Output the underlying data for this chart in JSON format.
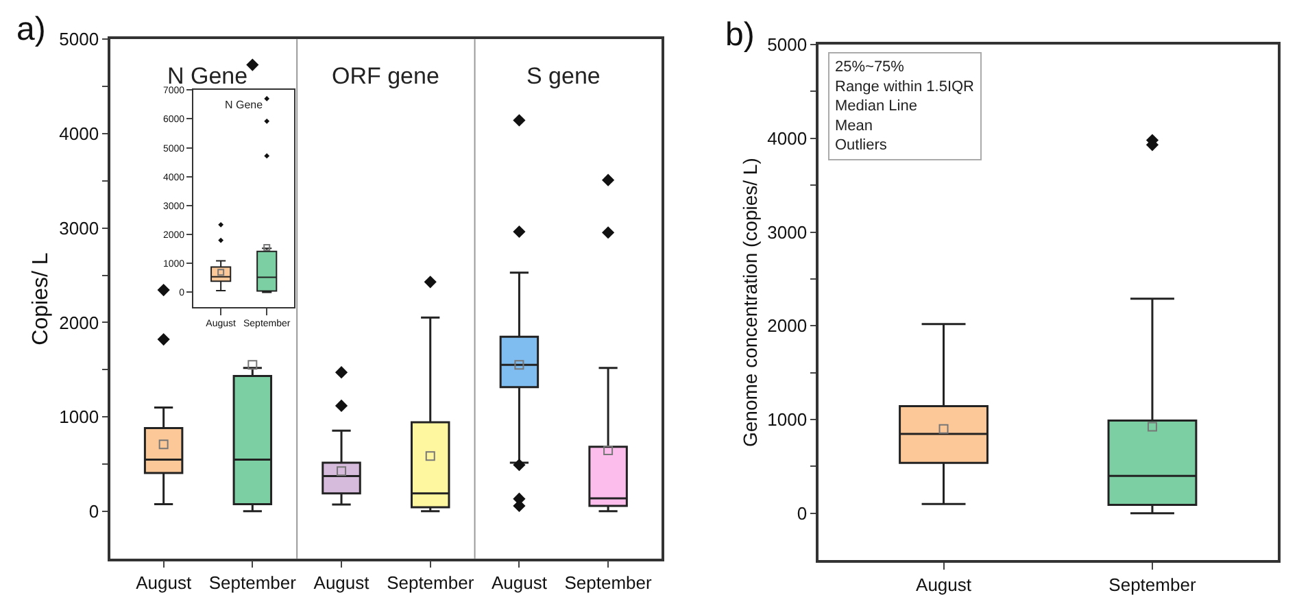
{
  "chart_data": [
    {
      "type": "box",
      "categories": [
        "August",
        "September",
        "August",
        "September",
        "August",
        "September"
      ],
      "ylabel": "Copies/ L",
      "ylim": [
        -500,
        5000
      ],
      "yticks": [
        0,
        {
          "value": 500,
          "label": null
        },
        1000,
        {
          "value": 1500,
          "label": null
        },
        2000,
        {
          "value": 2500,
          "label": null
        },
        3000,
        {
          "value": 3500,
          "label": null
        },
        4000,
        {
          "value": 4500,
          "label": null
        },
        5000
      ],
      "colors": [
        "#fdc897",
        "#7ccfa3",
        "#d6bbdc",
        "#fff7a0",
        "#7fbcf0",
        "#fcbcec"
      ],
      "marker": "diamond",
      "annotations": [
        "a)",
        "N Gene",
        "ORF gene",
        "S gene"
      ],
      "boxes": [
        {
          "low": 75,
          "q1": 405,
          "median": 547,
          "q3": 882,
          "high": 1099,
          "mean": 708,
          "outliers": [
            2344,
            1821
          ]
        },
        {
          "low": 0,
          "q1": 75,
          "median": 547,
          "q3": 1434,
          "high": 1519,
          "mean": 1552,
          "outliers": [
            4730
          ]
        },
        {
          "low": 71,
          "q1": 189,
          "median": 373,
          "q3": 514,
          "high": 854,
          "mean": 425,
          "outliers": [
            1472,
            1118
          ]
        },
        {
          "low": 0,
          "q1": 42,
          "median": 189,
          "q3": 943,
          "high": 2052,
          "mean": 585,
          "outliers": [
            2429
          ]
        },
        {
          "low": 514,
          "q1": 1316,
          "median": 1552,
          "q3": 1849,
          "high": 2528,
          "mean": 1552,
          "outliers": [
            4142,
            2962,
            491,
            132,
            57
          ]
        },
        {
          "low": 0,
          "q1": 57,
          "median": 137,
          "q3": 684,
          "high": 1519,
          "mean": 646,
          "outliers": [
            3509,
            2953
          ]
        }
      ]
    },
    {
      "type": "box",
      "title": "N Gene",
      "categories": [
        "August",
        "September"
      ],
      "ylim": [
        -500,
        7000
      ],
      "yticks": [
        0,
        1000,
        2000,
        3000,
        4000,
        5000,
        6000,
        7000
      ],
      "colors": [
        "#fdc897",
        "#7ccfa3"
      ],
      "marker": "diamond",
      "boxes": [
        {
          "low": 60,
          "q1": 385,
          "median": 540,
          "q3": 877,
          "high": 1092,
          "mean": 690,
          "outliers": [
            2338,
            1800
          ]
        },
        {
          "low": 0,
          "q1": 46,
          "median": 523,
          "q3": 1415,
          "high": 1523,
          "mean": 1554,
          "outliers": [
            6700,
            5920,
            4720
          ]
        }
      ]
    },
    {
      "type": "box",
      "categories": [
        "August",
        "September"
      ],
      "ylabel": "Genome concentration (copies/ L)",
      "ylim": [
        -500,
        5000
      ],
      "yticks": [
        0,
        {
          "value": 500,
          "label": null
        },
        1000,
        {
          "value": 1500,
          "label": null
        },
        2000,
        {
          "value": 2500,
          "label": null
        },
        3000,
        {
          "value": 3500,
          "label": null
        },
        4000,
        {
          "value": 4500,
          "label": null
        },
        5000
      ],
      "colors": [
        "#fdc897",
        "#7ccfa3"
      ],
      "marker": "diamond",
      "annotations": [
        "b)",
        "25%~75%",
        "Range within 1.5IQR",
        "Median Line",
        "Mean",
        "Outliers"
      ],
      "boxes": [
        {
          "low": 100,
          "q1": 538,
          "median": 848,
          "q3": 1143,
          "high": 2019,
          "mean": 900
        },
        {
          "low": 0,
          "q1": 90,
          "median": 400,
          "q3": 990,
          "high": 2290,
          "mean": 924,
          "outliers": [
            3980,
            3930
          ]
        }
      ]
    }
  ]
}
